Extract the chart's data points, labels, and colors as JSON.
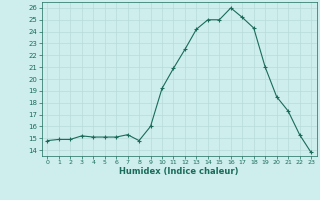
{
  "x": [
    0,
    1,
    2,
    3,
    4,
    5,
    6,
    7,
    8,
    9,
    10,
    11,
    12,
    13,
    14,
    15,
    16,
    17,
    18,
    19,
    20,
    21,
    22,
    23
  ],
  "y": [
    14.8,
    14.9,
    14.9,
    15.2,
    15.1,
    15.1,
    15.1,
    15.3,
    14.8,
    16.0,
    19.2,
    20.9,
    22.5,
    24.2,
    25.0,
    25.0,
    26.0,
    25.2,
    24.3,
    21.0,
    18.5,
    17.3,
    15.3,
    13.8
  ],
  "xlabel": "Humidex (Indice chaleur)",
  "xlim": [
    -0.5,
    23.5
  ],
  "ylim": [
    13.5,
    26.5
  ],
  "yticks": [
    14,
    15,
    16,
    17,
    18,
    19,
    20,
    21,
    22,
    23,
    24,
    25,
    26
  ],
  "xticks": [
    0,
    1,
    2,
    3,
    4,
    5,
    6,
    7,
    8,
    9,
    10,
    11,
    12,
    13,
    14,
    15,
    16,
    17,
    18,
    19,
    20,
    21,
    22,
    23
  ],
  "line_color": "#1a6b5a",
  "marker_color": "#1a6b5a",
  "bg_color": "#ceeeed",
  "grid_color": "#b8dcda",
  "axis_label_color": "#1a6b5a",
  "tick_color": "#1a6b5a"
}
